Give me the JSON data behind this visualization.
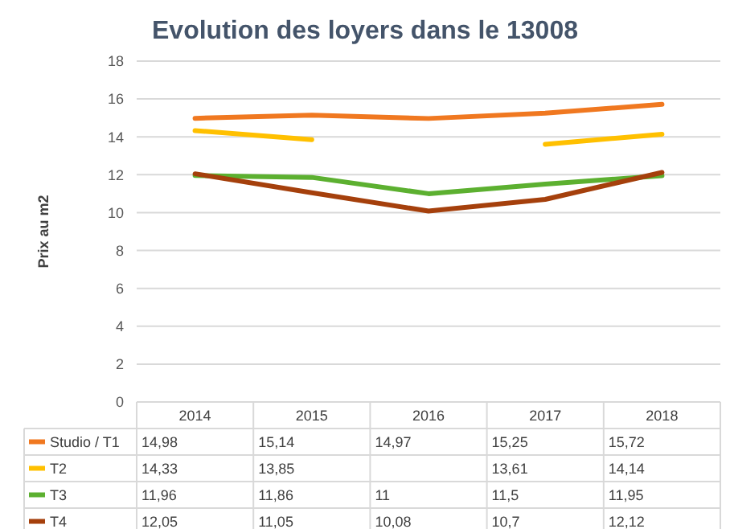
{
  "chart_data": {
    "type": "line",
    "title": "Evolution des loyers dans le 13008",
    "ylabel": "Prix au m2",
    "categories": [
      "2014",
      "2015",
      "2016",
      "2017",
      "2018"
    ],
    "series": [
      {
        "name": "Studio / T1",
        "color": "#f07820",
        "values": [
          14.98,
          15.14,
          14.97,
          15.25,
          15.72
        ],
        "value_labels": [
          "14,98",
          "15,14",
          "14,97",
          "15,25",
          "15,72"
        ]
      },
      {
        "name": "T2",
        "color": "#ffc000",
        "values": [
          14.33,
          13.85,
          null,
          13.61,
          14.14
        ],
        "value_labels": [
          "14,33",
          "13,85",
          null,
          "13,61",
          "14,14"
        ]
      },
      {
        "name": "T3",
        "color": "#5cb030",
        "values": [
          11.96,
          11.86,
          11,
          11.5,
          11.95
        ],
        "value_labels": [
          "11,96",
          "11,86",
          "11",
          "11,5",
          "11,95"
        ]
      },
      {
        "name": "T4",
        "color": "#a5400c",
        "values": [
          12.05,
          11.05,
          10.08,
          10.7,
          12.12
        ],
        "value_labels": [
          "12,05",
          "11,05",
          "10,08",
          "10,7",
          "12,12"
        ]
      }
    ],
    "ylim": [
      0,
      18
    ],
    "yticks": [
      0,
      2,
      4,
      6,
      8,
      10,
      12,
      14,
      16,
      18
    ],
    "grid": "y",
    "legend": "bottom",
    "marker": "none",
    "line_style": "solid"
  }
}
